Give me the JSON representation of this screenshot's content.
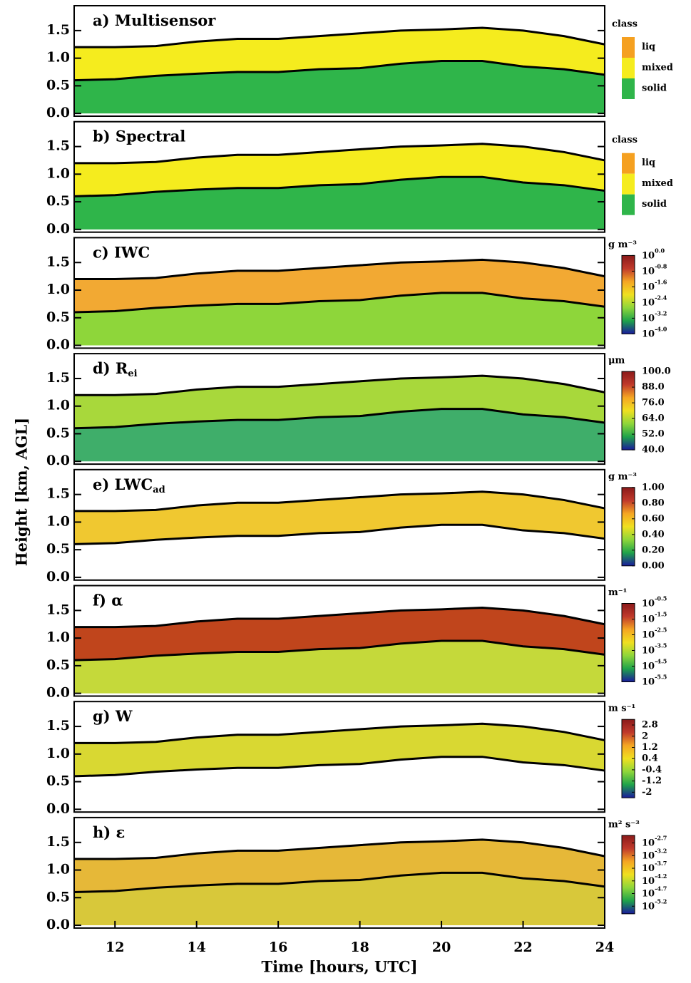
{
  "figure": {
    "ylabel": "Height [km, AGL]"
  },
  "chart_data": [
    {
      "type": "classes",
      "title": "a) Multisensor",
      "legend_title": "class",
      "classes": [
        {
          "name": "liq",
          "color": "#f5a020"
        },
        {
          "name": "mixed",
          "color": "#f5ec1e"
        },
        {
          "name": "solid",
          "color": "#2fb54a"
        }
      ],
      "layer_colors": [
        "#2fb54a",
        "#f5ec1e"
      ],
      "xlim": [
        11,
        24
      ],
      "ylim": [
        -0.05,
        1.95
      ],
      "yticks": [
        {
          "value": 0,
          "label": "0.0"
        },
        0.5,
        {
          "value": 1,
          "label": "1.0"
        },
        1.5
      ],
      "x": [
        11,
        12,
        13,
        14,
        15,
        16,
        17,
        18,
        19,
        20,
        21,
        22,
        23,
        24
      ],
      "cloud_top": [
        1.2,
        1.2,
        1.22,
        1.3,
        1.35,
        1.35,
        1.4,
        1.45,
        1.5,
        1.52,
        1.55,
        1.5,
        1.4,
        1.25
      ],
      "cloud_base": [
        0.6,
        0.62,
        0.68,
        0.72,
        0.75,
        0.75,
        0.8,
        0.82,
        0.9,
        0.95,
        0.95,
        0.85,
        0.8,
        0.7
      ]
    },
    {
      "type": "classes",
      "title": "b) Spectral",
      "legend_title": "class",
      "classes": [
        {
          "name": "liq",
          "color": "#f5a020"
        },
        {
          "name": "mixed",
          "color": "#f5ec1e"
        },
        {
          "name": "solid",
          "color": "#2fb54a"
        }
      ],
      "layer_colors": [
        "#2fb54a",
        "#f5ec1e"
      ],
      "xlim": [
        11,
        24
      ],
      "ylim": [
        -0.05,
        1.95
      ],
      "yticks": [
        {
          "value": 0,
          "label": "0.0"
        },
        0.5,
        {
          "value": 1,
          "label": "1.0"
        },
        1.5
      ],
      "x": [
        11,
        12,
        13,
        14,
        15,
        16,
        17,
        18,
        19,
        20,
        21,
        22,
        23,
        24
      ],
      "cloud_top": [
        1.2,
        1.2,
        1.22,
        1.3,
        1.35,
        1.35,
        1.4,
        1.45,
        1.5,
        1.52,
        1.55,
        1.5,
        1.4,
        1.25
      ],
      "cloud_base": [
        0.6,
        0.62,
        0.68,
        0.72,
        0.75,
        0.75,
        0.8,
        0.82,
        0.9,
        0.95,
        0.95,
        0.85,
        0.8,
        0.7
      ]
    },
    {
      "type": "heatmap",
      "title": "c) IWC",
      "unit": "g m⁻³",
      "cbase": "10",
      "clim": [
        -4.0,
        0.0
      ],
      "cticks": [
        {
          "value": 0,
          "label": "0.0"
        },
        {
          "value": -0.8,
          "label": "-0.8"
        },
        {
          "value": -1.6,
          "label": "-1.6"
        },
        {
          "value": -2.4,
          "label": "-2.4"
        },
        {
          "value": -3.2,
          "label": "-3.2"
        },
        {
          "value": -4,
          "label": "-4.0"
        }
      ],
      "colors": [
        "#1a1a9c",
        "#1fa34a",
        "#8ed63a",
        "#f0e020",
        "#f5a623",
        "#c0392b",
        "#8b1a1a"
      ],
      "layer_colors": [
        "#8ed63a",
        "#f2a933"
      ],
      "xlim": [
        11,
        24
      ],
      "ylim": [
        -0.05,
        1.95
      ],
      "yticks": [
        {
          "value": 0,
          "label": "0.0"
        },
        0.5,
        {
          "value": 1,
          "label": "1.0"
        },
        1.5
      ],
      "x": [
        11,
        12,
        13,
        14,
        15,
        16,
        17,
        18,
        19,
        20,
        21,
        22,
        23,
        24
      ],
      "cloud_top": [
        1.2,
        1.2,
        1.22,
        1.3,
        1.35,
        1.35,
        1.4,
        1.45,
        1.5,
        1.52,
        1.55,
        1.5,
        1.4,
        1.25
      ],
      "cloud_base": [
        0.6,
        0.62,
        0.68,
        0.72,
        0.75,
        0.75,
        0.8,
        0.82,
        0.9,
        0.95,
        0.95,
        0.85,
        0.8,
        0.7
      ]
    },
    {
      "type": "heatmap",
      "title": "d) R",
      "title_sub": "ei",
      "unit": "μm",
      "clim": [
        40,
        100
      ],
      "cticks": [
        {
          "value": 100,
          "label": "100.0"
        },
        {
          "value": 88,
          "label": "88.0"
        },
        {
          "value": 76,
          "label": "76.0"
        },
        {
          "value": 64,
          "label": "64.0"
        },
        {
          "value": 52,
          "label": "52.0"
        },
        {
          "value": 40,
          "label": "40.0"
        }
      ],
      "colors": [
        "#1a1a9c",
        "#1fa34a",
        "#8ed63a",
        "#f0e020",
        "#f5a623",
        "#c0392b",
        "#8b1a1a"
      ],
      "layer_colors": [
        "#3fae6a",
        "#a8d83b"
      ],
      "xlim": [
        11,
        24
      ],
      "ylim": [
        -0.05,
        1.95
      ],
      "yticks": [
        {
          "value": 0,
          "label": "0.0"
        },
        0.5,
        {
          "value": 1,
          "label": "1.0"
        },
        1.5
      ],
      "x": [
        11,
        12,
        13,
        14,
        15,
        16,
        17,
        18,
        19,
        20,
        21,
        22,
        23,
        24
      ],
      "cloud_top": [
        1.2,
        1.2,
        1.22,
        1.3,
        1.35,
        1.35,
        1.4,
        1.45,
        1.5,
        1.52,
        1.55,
        1.5,
        1.4,
        1.25
      ],
      "cloud_base": [
        0.6,
        0.62,
        0.68,
        0.72,
        0.75,
        0.75,
        0.8,
        0.82,
        0.9,
        0.95,
        0.95,
        0.85,
        0.8,
        0.7
      ]
    },
    {
      "type": "heatmap",
      "title": "e) LWC",
      "title_sub": "ad",
      "unit": "g m⁻³",
      "clim": [
        0,
        1
      ],
      "cticks": [
        {
          "value": 1,
          "label": "1.00"
        },
        {
          "value": 0.8,
          "label": "0.80"
        },
        {
          "value": 0.6,
          "label": "0.60"
        },
        {
          "value": 0.4,
          "label": "0.40"
        },
        {
          "value": 0.2,
          "label": "0.20"
        },
        {
          "value": 0,
          "label": "0.00"
        }
      ],
      "colors": [
        "#1a1a9c",
        "#1fa34a",
        "#8ed63a",
        "#f0e020",
        "#f5a623",
        "#c0392b",
        "#8b1a1a"
      ],
      "layer_colors": [
        null,
        "#f0c830"
      ],
      "xlim": [
        11,
        24
      ],
      "ylim": [
        -0.05,
        1.95
      ],
      "yticks": [
        {
          "value": 0,
          "label": "0.0"
        },
        0.5,
        {
          "value": 1,
          "label": "1.0"
        },
        1.5
      ],
      "x": [
        11,
        12,
        13,
        14,
        15,
        16,
        17,
        18,
        19,
        20,
        21,
        22,
        23,
        24
      ],
      "cloud_top": [
        1.2,
        1.2,
        1.22,
        1.3,
        1.35,
        1.35,
        1.4,
        1.45,
        1.5,
        1.52,
        1.55,
        1.5,
        1.4,
        1.25
      ],
      "cloud_base": [
        0.6,
        0.62,
        0.68,
        0.72,
        0.75,
        0.75,
        0.8,
        0.82,
        0.9,
        0.95,
        0.95,
        0.85,
        0.8,
        0.7
      ]
    },
    {
      "type": "heatmap",
      "title": "f) α",
      "unit": "m⁻¹",
      "cbase": "10",
      "clim": [
        -5.5,
        -0.5
      ],
      "cticks": [
        {
          "value": -0.5,
          "label": "-0.5"
        },
        {
          "value": -1.5,
          "label": "-1.5"
        },
        {
          "value": -2.5,
          "label": "-2.5"
        },
        {
          "value": -3.5,
          "label": "-3.5"
        },
        {
          "value": -4.5,
          "label": "-4.5"
        },
        {
          "value": -5.5,
          "label": "-5.5"
        }
      ],
      "colors": [
        "#1a1a9c",
        "#1fa34a",
        "#8ed63a",
        "#f0e020",
        "#f5a623",
        "#c0392b",
        "#8b1a1a"
      ],
      "layer_colors": [
        "#c5d93a",
        "#c0451c"
      ],
      "xlim": [
        11,
        24
      ],
      "ylim": [
        -0.05,
        1.95
      ],
      "yticks": [
        {
          "value": 0,
          "label": "0.0"
        },
        0.5,
        {
          "value": 1,
          "label": "1.0"
        },
        1.5
      ],
      "x": [
        11,
        12,
        13,
        14,
        15,
        16,
        17,
        18,
        19,
        20,
        21,
        22,
        23,
        24
      ],
      "cloud_top": [
        1.2,
        1.2,
        1.22,
        1.3,
        1.35,
        1.35,
        1.4,
        1.45,
        1.5,
        1.52,
        1.55,
        1.5,
        1.4,
        1.25
      ],
      "cloud_base": [
        0.6,
        0.62,
        0.68,
        0.72,
        0.75,
        0.75,
        0.8,
        0.82,
        0.9,
        0.95,
        0.95,
        0.85,
        0.8,
        0.7
      ]
    },
    {
      "type": "heatmap",
      "title": "g) W",
      "unit": "m s⁻¹",
      "clim": [
        -2.4,
        3.2
      ],
      "cticks": [
        2.8,
        2.0,
        1.2,
        0.4,
        -0.4,
        -1.2,
        -2.0
      ],
      "colors": [
        "#1a1a9c",
        "#1fa34a",
        "#8ed63a",
        "#f0e020",
        "#f5a623",
        "#c0392b",
        "#8b1a1a"
      ],
      "layer_colors": [
        null,
        "#d9d832"
      ],
      "xlim": [
        11,
        24
      ],
      "ylim": [
        -0.05,
        1.95
      ],
      "yticks": [
        {
          "value": 0,
          "label": "0.0"
        },
        0.5,
        {
          "value": 1,
          "label": "1.0"
        },
        1.5
      ],
      "x": [
        11,
        12,
        13,
        14,
        15,
        16,
        17,
        18,
        19,
        20,
        21,
        22,
        23,
        24
      ],
      "cloud_top": [
        1.2,
        1.2,
        1.22,
        1.3,
        1.35,
        1.35,
        1.4,
        1.45,
        1.5,
        1.52,
        1.55,
        1.5,
        1.4,
        1.25
      ],
      "cloud_base": [
        0.6,
        0.62,
        0.68,
        0.72,
        0.75,
        0.75,
        0.8,
        0.82,
        0.9,
        0.95,
        0.95,
        0.85,
        0.8,
        0.7
      ]
    },
    {
      "type": "heatmap",
      "title": "h) ε",
      "unit": "m² s⁻³",
      "cbase": "10",
      "clim": [
        -5.5,
        -2.4
      ],
      "cticks": [
        {
          "value": -2.7,
          "label": "-2.7"
        },
        {
          "value": -3.2,
          "label": "-3.2"
        },
        {
          "value": -3.7,
          "label": "-3.7"
        },
        {
          "value": -4.2,
          "label": "-4.2"
        },
        {
          "value": -4.7,
          "label": "-4.7"
        },
        {
          "value": -5.2,
          "label": "-5.2"
        }
      ],
      "colors": [
        "#1a1a9c",
        "#1fa34a",
        "#8ed63a",
        "#f0e020",
        "#f5a623",
        "#c0392b",
        "#8b1a1a"
      ],
      "layer_colors": [
        "#d8c83a",
        "#e6b838"
      ],
      "xlim": [
        11,
        24
      ],
      "ylim": [
        -0.05,
        1.95
      ],
      "yticks": [
        {
          "value": 0,
          "label": "0.0"
        },
        0.5,
        {
          "value": 1,
          "label": "1.0"
        },
        1.5
      ],
      "xticks": [
        12,
        14,
        16,
        18,
        20,
        22,
        24
      ],
      "xlabel": "Time [hours, UTC]",
      "x": [
        11,
        12,
        13,
        14,
        15,
        16,
        17,
        18,
        19,
        20,
        21,
        22,
        23,
        24
      ],
      "cloud_top": [
        1.2,
        1.2,
        1.22,
        1.3,
        1.35,
        1.35,
        1.4,
        1.45,
        1.5,
        1.52,
        1.55,
        1.5,
        1.4,
        1.25
      ],
      "cloud_base": [
        0.6,
        0.62,
        0.68,
        0.72,
        0.75,
        0.75,
        0.8,
        0.82,
        0.9,
        0.95,
        0.95,
        0.85,
        0.8,
        0.7
      ]
    }
  ]
}
